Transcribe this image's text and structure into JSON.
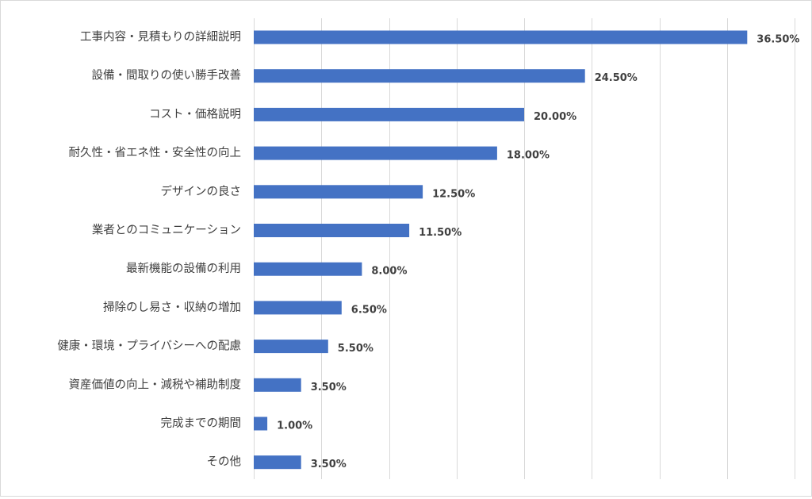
{
  "chart_data": {
    "type": "bar",
    "orientation": "horizontal",
    "categories": [
      "工事内容・見積もりの詳細説明",
      "設備・間取りの使い勝手改善",
      "コスト・価格説明",
      "耐久性・省エネ性・安全性の向上",
      "デザインの良さ",
      "業者とのコミュニケーション",
      "最新機能の設備の利用",
      "掃除のし易さ・収納の増加",
      "健康・環境・プライバシーへの配慮",
      "資産価値の向上・減税や補助制度",
      "完成までの期間",
      "その他"
    ],
    "values": [
      36.5,
      24.5,
      20.0,
      18.0,
      12.5,
      11.5,
      8.0,
      6.5,
      5.5,
      3.5,
      1.0,
      3.5
    ],
    "value_labels": [
      "36.50%",
      "24.50%",
      "20.00%",
      "18.00%",
      "12.50%",
      "11.50%",
      "8.00%",
      "6.50%",
      "5.50%",
      "3.50%",
      "1.00%",
      "3.50%"
    ],
    "xlim": [
      0,
      40
    ],
    "grid": true,
    "legend": "none",
    "bar_color": "#4472C4",
    "grid_color": "#d9d9d9"
  }
}
